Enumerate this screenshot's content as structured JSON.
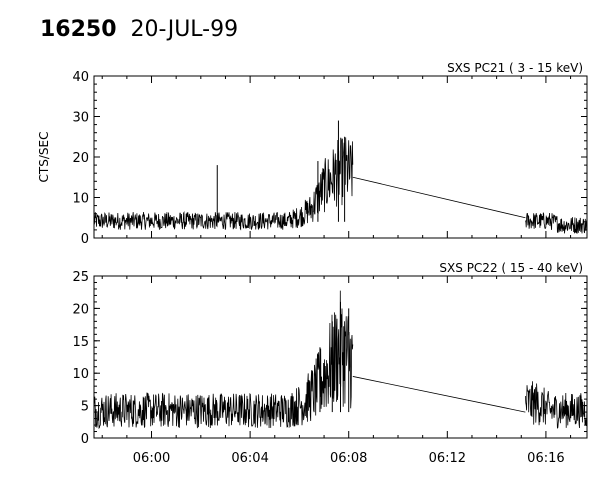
{
  "header": {
    "orbit": "16250",
    "date": "20-JUL-99"
  },
  "chart_data": [
    {
      "type": "line",
      "title": "SXS PC21  ( 3 - 15 keV)",
      "ylabel": "CTS/SEC",
      "xlabel": "",
      "xlim": [
        "05:57:40",
        "06:17:40"
      ],
      "ylim": [
        0,
        40
      ],
      "yticks": [
        0,
        10,
        20,
        30,
        40
      ],
      "xticks": [
        "06:00",
        "06:04",
        "06:08",
        "06:12",
        "06:16"
      ],
      "segments": [
        {
          "x": [
            "05:57:40",
            "05:58:30",
            "05:59:30",
            "06:00:30",
            "06:01:30",
            "06:02:30",
            "06:03:30",
            "06:04:30",
            "06:05:30",
            "06:06:00",
            "06:06:30",
            "06:07:00",
            "06:07:30",
            "06:07:50",
            "06:08:10"
          ],
          "y": [
            4,
            4,
            4,
            4,
            4,
            4,
            4,
            4,
            4,
            5,
            7,
            12,
            15,
            16,
            15
          ]
        },
        {
          "x": [
            "06:08:10",
            "06:15:10"
          ],
          "y": [
            15,
            5
          ]
        },
        {
          "x": [
            "06:15:10",
            "06:15:40",
            "06:16:10",
            "06:16:40",
            "06:17:10",
            "06:17:40"
          ],
          "y": [
            4,
            4,
            4,
            3,
            3,
            3
          ]
        }
      ],
      "spikes": [
        {
          "x": "06:02:40",
          "y": 18
        },
        {
          "x": "06:07:35",
          "y": 29
        },
        {
          "x": "06:07:50",
          "y": 25
        },
        {
          "x": "06:06:45",
          "y": 19
        }
      ]
    },
    {
      "type": "line",
      "title": "SXS PC22  ( 15 - 40 keV)",
      "ylabel": "",
      "xlabel": "",
      "xlim": [
        "05:57:40",
        "06:17:40"
      ],
      "ylim": [
        0,
        25
      ],
      "yticks": [
        0,
        5,
        10,
        15,
        20,
        25
      ],
      "xticks": [
        "06:00",
        "06:04",
        "06:08",
        "06:12",
        "06:16"
      ],
      "segments": [
        {
          "x": [
            "05:57:40",
            "05:58:30",
            "05:59:30",
            "06:00:30",
            "06:01:30",
            "06:02:30",
            "06:03:30",
            "06:04:30",
            "06:05:30",
            "06:06:10",
            "06:06:40",
            "06:07:10",
            "06:07:40",
            "06:08:10"
          ],
          "y": [
            4,
            4,
            4,
            4,
            4,
            4,
            4,
            4,
            4,
            5,
            7,
            10,
            13,
            11
          ]
        },
        {
          "x": [
            "06:08:10",
            "06:15:10"
          ],
          "y": [
            9.5,
            4
          ]
        },
        {
          "x": [
            "06:15:10",
            "06:15:40",
            "06:16:10",
            "06:16:40",
            "06:17:10",
            "06:17:40"
          ],
          "y": [
            5,
            5,
            4,
            4,
            4,
            4
          ]
        }
      ],
      "spikes": [
        {
          "x": "06:07:40",
          "y": 21
        },
        {
          "x": "06:08:00",
          "y": 20
        },
        {
          "x": "06:07:20",
          "y": 18
        },
        {
          "x": "06:06:50",
          "y": 14
        }
      ]
    }
  ]
}
